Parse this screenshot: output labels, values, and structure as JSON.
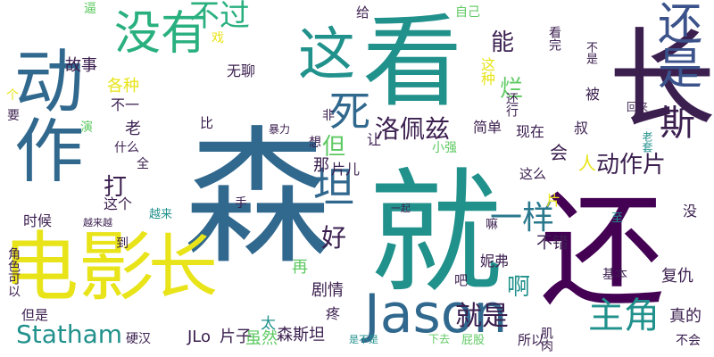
{
  "palette": {
    "background": "#ffffff",
    "dark_purple": "#3b1f4f",
    "blue": "#31688e",
    "teal": "#21908d",
    "green": "#35b779",
    "yellow": "#e4e322"
  },
  "words": [
    {
      "text": "森",
      "color": "#31688e",
      "vertical": false
    },
    {
      "text": "就",
      "color": "#21918c",
      "vertical": false
    },
    {
      "text": "还",
      "color": "#440154",
      "vertical": false
    },
    {
      "text": "看",
      "color": "#21918c",
      "vertical": false
    },
    {
      "text": "长",
      "color": "#3b1f4f",
      "vertical": true
    },
    {
      "text": "动作",
      "color": "#31688e",
      "vertical": true
    },
    {
      "text": "电影",
      "color": "#e8e419",
      "vertical": false
    },
    {
      "text": "长",
      "color": "#e8e419",
      "vertical": false
    },
    {
      "text": "这",
      "color": "#21918c",
      "vertical": false
    },
    {
      "text": "没有",
      "color": "#2ab07f",
      "vertical": false
    },
    {
      "text": "不过",
      "color": "#2ab07f",
      "vertical": false
    },
    {
      "text": "还是",
      "color": "#3b528b",
      "vertical": true
    },
    {
      "text": "死",
      "color": "#31688e",
      "vertical": false
    },
    {
      "text": "斯",
      "color": "#3b1f4f",
      "vertical": false
    },
    {
      "text": "坦",
      "color": "#31688e",
      "vertical": false
    },
    {
      "text": "Jason",
      "color": "#31688e",
      "vertical": false
    },
    {
      "text": "一样",
      "color": "#2a788e",
      "vertical": false
    },
    {
      "text": "主角",
      "color": "#21918c",
      "vertical": false
    },
    {
      "text": "洛佩兹",
      "color": "#3b1f4f",
      "vertical": false
    },
    {
      "text": "动作片",
      "color": "#3b1f4f",
      "vertical": false
    },
    {
      "text": "就是",
      "color": "#3b1f4f",
      "vertical": false
    },
    {
      "text": "能",
      "color": "#3b1f4f",
      "vertical": false
    },
    {
      "text": "烂",
      "color": "#5ec962",
      "vertical": false
    },
    {
      "text": "好",
      "color": "#3b1f4f",
      "vertical": false
    },
    {
      "text": "打",
      "color": "#3b1f4f",
      "vertical": false
    },
    {
      "text": "但",
      "color": "#5ec962",
      "vertical": false
    },
    {
      "text": "啊",
      "color": "#21918c",
      "vertical": false
    },
    {
      "text": "Statham",
      "color": "#21918c",
      "vertical": false
    },
    {
      "text": "故事",
      "color": "#3b1f4f",
      "vertical": false
    },
    {
      "text": "不错",
      "color": "#3b1f4f",
      "vertical": false
    },
    {
      "text": "真的",
      "color": "#3b1f4f",
      "vertical": false
    },
    {
      "text": "复仇",
      "color": "#3b1f4f",
      "vertical": false
    },
    {
      "text": "森斯坦",
      "color": "#3b1f4f",
      "vertical": false
    },
    {
      "text": "JLo",
      "color": "#3b1f4f",
      "vertical": false
    },
    {
      "text": "片子",
      "color": "#3b1f4f",
      "vertical": false
    },
    {
      "text": "虽然",
      "color": "#5ec962",
      "vertical": false
    },
    {
      "text": "剧情",
      "color": "#3b1f4f",
      "vertical": false
    },
    {
      "text": "无聊",
      "color": "#3b1f4f",
      "vertical": false
    },
    {
      "text": "各种",
      "color": "#e8e419",
      "vertical": false
    },
    {
      "text": "不一",
      "color": "#3b1f4f",
      "vertical": false
    },
    {
      "text": "老",
      "color": "#3b1f4f",
      "vertical": false
    },
    {
      "text": "什么",
      "color": "#3b1f4f",
      "vertical": false
    },
    {
      "text": "这个",
      "color": "#3b1f4f",
      "vertical": false
    },
    {
      "text": "时候",
      "color": "#3b1f4f",
      "vertical": false
    },
    {
      "text": "角色可以",
      "color": "#3b1f4f",
      "vertical": true
    },
    {
      "text": "但是",
      "color": "#3b1f4f",
      "vertical": false
    },
    {
      "text": "硬汉",
      "color": "#3b1f4f",
      "vertical": false
    },
    {
      "text": "所以",
      "color": "#3b1f4f",
      "vertical": false
    },
    {
      "text": "肌肉",
      "color": "#3b1f4f",
      "vertical": true
    },
    {
      "text": "不会",
      "color": "#3b1f4f",
      "vertical": false
    },
    {
      "text": "人",
      "color": "#e8e419",
      "vertical": false
    },
    {
      "text": "会",
      "color": "#3b1f4f",
      "vertical": false
    },
    {
      "text": "这么",
      "color": "#3b1f4f",
      "vertical": false
    },
    {
      "text": "简单",
      "color": "#3b1f4f",
      "vertical": false
    },
    {
      "text": "现在",
      "color": "#3b1f4f",
      "vertical": false
    },
    {
      "text": "那",
      "color": "#3b1f4f",
      "vertical": false
    },
    {
      "text": "片儿",
      "color": "#3b1f4f",
      "vertical": false
    },
    {
      "text": "让",
      "color": "#3b1f4f",
      "vertical": false
    },
    {
      "text": "小强",
      "color": "#5ec962",
      "vertical": false
    },
    {
      "text": "被",
      "color": "#3b1f4f",
      "vertical": false
    },
    {
      "text": "叔",
      "color": "#3b1f4f",
      "vertical": false
    },
    {
      "text": "再",
      "color": "#5ec962",
      "vertical": false
    },
    {
      "text": "疼",
      "color": "#3b1f4f",
      "vertical": false
    },
    {
      "text": "太",
      "color": "#21918c",
      "vertical": false
    },
    {
      "text": "吧",
      "color": "#3b1f4f",
      "vertical": false
    },
    {
      "text": "嘛",
      "color": "#3b1f4f",
      "vertical": false
    },
    {
      "text": "没",
      "color": "#3b1f4f",
      "vertical": false
    },
    {
      "text": "基本",
      "color": "#3b1f4f",
      "vertical": false
    },
    {
      "text": "妮弗",
      "color": "#3b1f4f",
      "vertical": false
    },
    {
      "text": "到",
      "color": "#3b1f4f",
      "vertical": false
    },
    {
      "text": "全",
      "color": "#3b1f4f",
      "vertical": false
    },
    {
      "text": "演",
      "color": "#5ec962",
      "vertical": false
    },
    {
      "text": "要",
      "color": "#3b1f4f",
      "vertical": false
    },
    {
      "text": "个",
      "color": "#e8e419",
      "vertical": false
    },
    {
      "text": "逼",
      "color": "#5ec962",
      "vertical": false
    },
    {
      "text": "给",
      "color": "#3b1f4f",
      "vertical": false
    },
    {
      "text": "戏",
      "color": "#e8e419",
      "vertical": false
    },
    {
      "text": "自己",
      "color": "#5ec962",
      "vertical": false
    },
    {
      "text": "这种",
      "color": "#e8e419",
      "vertical": true
    },
    {
      "text": "还行",
      "color": "#3b1f4f",
      "vertical": true
    },
    {
      "text": "看完",
      "color": "#3b1f4f",
      "vertical": true
    },
    {
      "text": "不是",
      "color": "#3b1f4f",
      "vertical": true
    },
    {
      "text": "回来",
      "color": "#3b1f4f",
      "vertical": false
    },
    {
      "text": "老套",
      "color": "#21918c",
      "vertical": true
    },
    {
      "text": "片",
      "color": "#e8e419",
      "vertical": false
    },
    {
      "text": "手",
      "color": "#3b1f4f",
      "vertical": false
    },
    {
      "text": "越来",
      "color": "#21918c",
      "vertical": false
    },
    {
      "text": "越来越",
      "color": "#3b1f4f",
      "vertical": false
    },
    {
      "text": "一起",
      "color": "#3b1f4f",
      "vertical": false
    },
    {
      "text": "想",
      "color": "#3b1f4f",
      "vertical": false
    },
    {
      "text": "暴力",
      "color": "#3b1f4f",
      "vertical": false
    },
    {
      "text": "非",
      "color": "#3b1f4f",
      "vertical": false
    },
    {
      "text": "比",
      "color": "#3b1f4f",
      "vertical": true
    },
    {
      "text": "是不是",
      "color": "#21918c",
      "vertical": false
    },
    {
      "text": "下去",
      "color": "#5ec962",
      "vertical": false
    },
    {
      "text": "屁股",
      "color": "#5ec962",
      "vertical": false
    },
    {
      "text": "至",
      "color": "#21918c",
      "vertical": true
    }
  ]
}
